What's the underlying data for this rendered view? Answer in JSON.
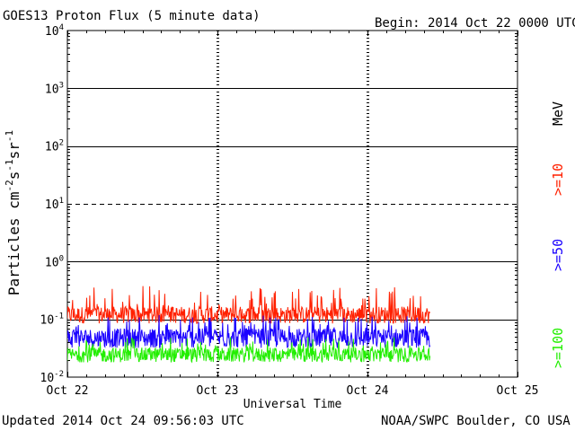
{
  "header": {
    "title": "GOES13 Proton Flux (5 minute data)",
    "begin": "Begin: 2014 Oct 22 0000 UTC"
  },
  "footer": {
    "updated": "Updated 2014 Oct 24 09:56:03 UTC",
    "credit": "NOAA/SWPC Boulder, CO USA"
  },
  "colors": {
    "ge10": "#ff2000",
    "ge50": "#1a00ff",
    "ge100": "#22ee00",
    "axis": "#000000",
    "background": "#ffffff"
  },
  "chart_data": {
    "type": "line",
    "title": "GOES13 Proton Flux (5 minute data)",
    "xlabel": "Universal Time",
    "ylabel": "Particles cm-2s-1sr-1",
    "ylabel_parts": {
      "base": "Particles cm",
      "e1": "-2",
      "mid1": "s",
      "e2": "-1",
      "mid2": "sr",
      "e3": "-1"
    },
    "yscale": "log",
    "ylim": [
      0.01,
      10000
    ],
    "xlim": [
      "2014-10-22",
      "2014-10-25"
    ],
    "x_ticks": [
      "Oct 22",
      "Oct 23",
      "Oct 24",
      "Oct 25"
    ],
    "y_ticks": [
      {
        "base": "10",
        "exp": "4"
      },
      {
        "base": "10",
        "exp": "3"
      },
      {
        "base": "10",
        "exp": "2"
      },
      {
        "base": "10",
        "exp": "1"
      },
      {
        "base": "10",
        "exp": "0"
      },
      {
        "base": "10",
        "exp": "-1"
      },
      {
        "base": "10",
        "exp": "-2"
      }
    ],
    "grid": "horizontal solid at decades, dashed at 10^1; dotted vertical at day boundaries",
    "legend_placement": "right (vertical)",
    "legend": {
      "ge10": ">=10",
      "ge50": ">=50",
      "ge100": ">=100",
      "unit": "MeV"
    },
    "data_end": "2014-10-24 10:00",
    "series": [
      {
        "name": ">=10",
        "typical": 0.13,
        "min": 0.085,
        "max": 0.38
      },
      {
        "name": ">=50",
        "typical": 0.052,
        "min": 0.032,
        "max": 0.12
      },
      {
        "name": ">=100",
        "typical": 0.026,
        "min": 0.018,
        "max": 0.05
      }
    ]
  }
}
